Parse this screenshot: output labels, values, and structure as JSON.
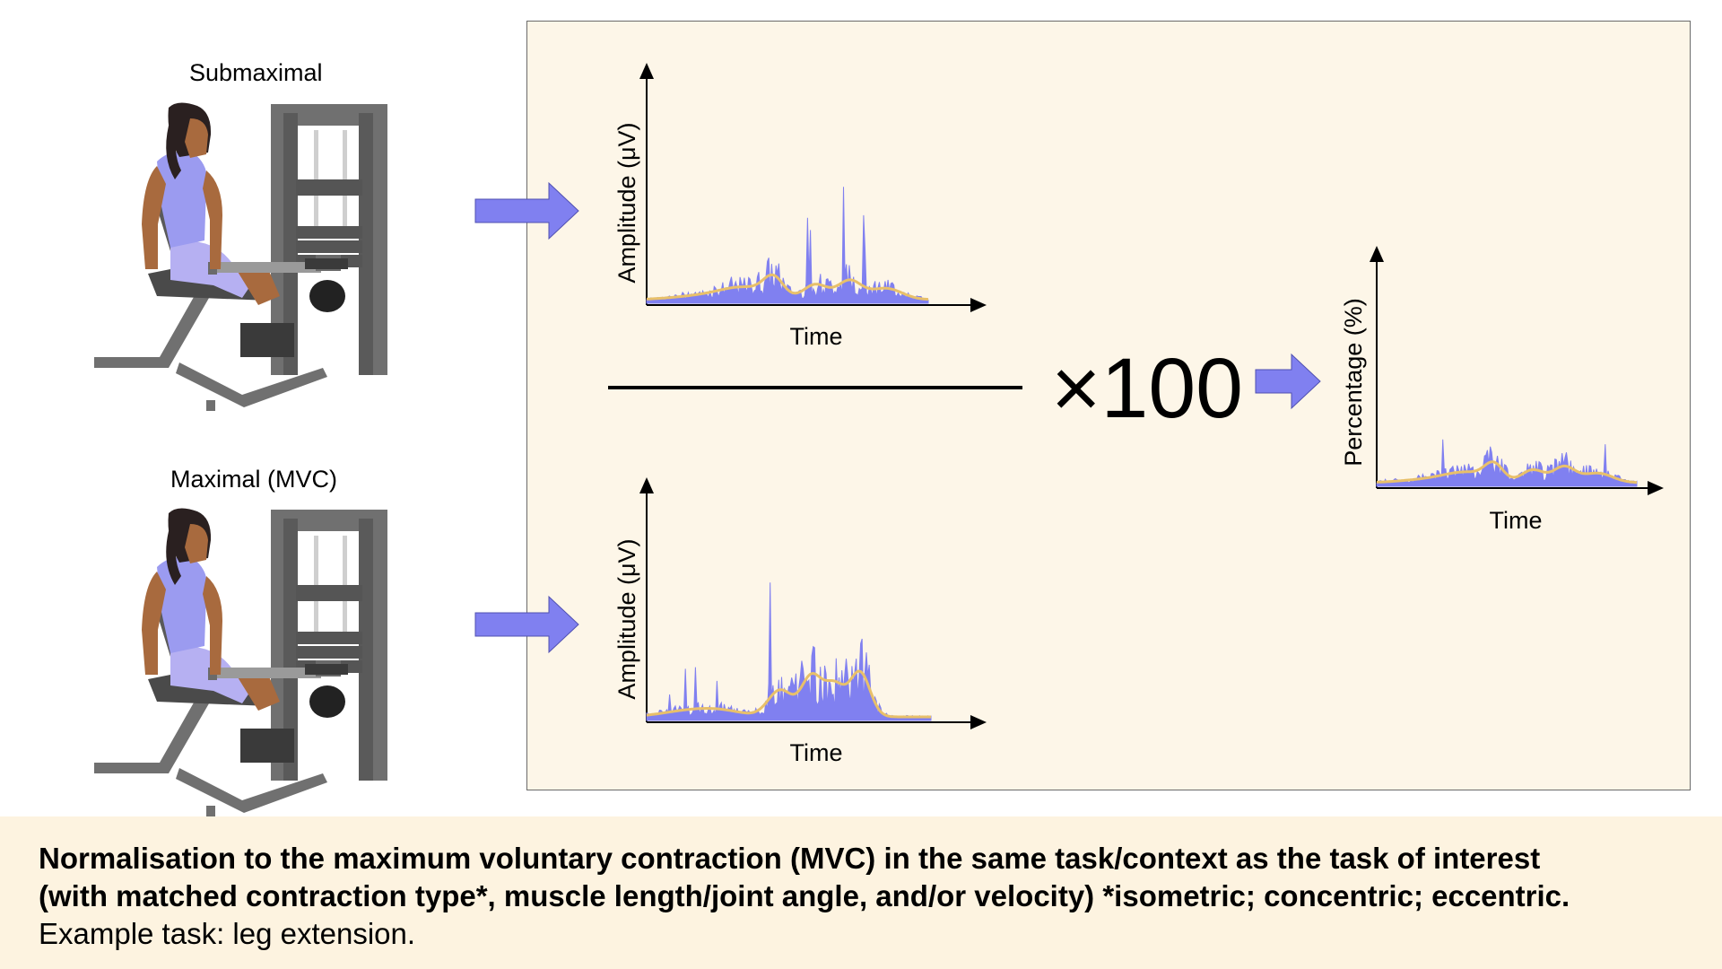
{
  "labels": {
    "submaximal": "Submaximal",
    "maximal": "Maximal (MVC)",
    "multiplier": "×100"
  },
  "charts": [
    {
      "id": "submaximal",
      "xlabel": "Time",
      "ylabel": "Amplitude (μV)"
    },
    {
      "id": "maximal",
      "xlabel": "Time",
      "ylabel": "Amplitude (μV)"
    },
    {
      "id": "normalised",
      "xlabel": "Time",
      "ylabel": "Percentage (%)"
    }
  ],
  "caption": {
    "line1": "Normalisation to the maximum voluntary contraction (MVC) in the same task/context as the task of interest",
    "line2": "(with matched contraction type*, muscle length/joint angle, and/or velocity) *isometric; concentric; eccentric.",
    "line3": "Example task: leg extension."
  },
  "colors": {
    "emg_raw": "#8080f0",
    "emg_envelope": "#e8c06a",
    "arrow": "#8080f0",
    "skin": "#a86a3e",
    "top": "#9b9bf0",
    "machine": "#707070"
  }
}
